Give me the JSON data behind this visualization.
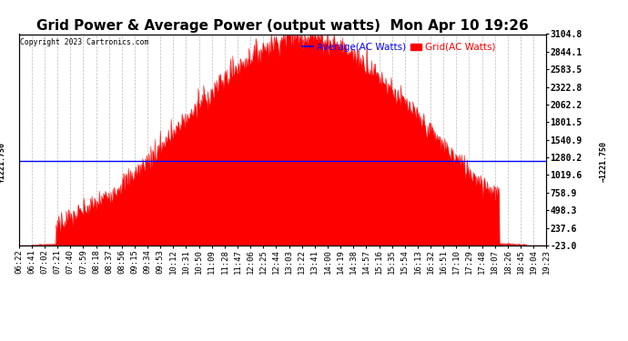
{
  "title": "Grid Power & Average Power (output watts)  Mon Apr 10 19:26",
  "copyright": "Copyright 2023 Cartronics.com",
  "legend_avg": "Average(AC Watts)",
  "legend_grid": "Grid(AC Watts)",
  "avg_value": 1221.75,
  "ymin": -23.0,
  "ymax": 3104.8,
  "yticks": [
    3104.8,
    2844.1,
    2583.5,
    2322.8,
    2062.2,
    1801.5,
    1540.9,
    1280.2,
    1019.6,
    758.9,
    498.3,
    237.6,
    -23.0
  ],
  "fill_color": "#ff0000",
  "avg_line_color": "#0000ff",
  "background_color": "#ffffff",
  "grid_color": "#bbbbbb",
  "xtick_labels": [
    "06:22",
    "06:41",
    "07:02",
    "07:21",
    "07:40",
    "07:59",
    "08:18",
    "08:37",
    "08:56",
    "09:15",
    "09:34",
    "09:53",
    "10:12",
    "10:31",
    "10:50",
    "11:09",
    "11:28",
    "11:47",
    "12:06",
    "12:25",
    "12:44",
    "13:03",
    "13:22",
    "13:41",
    "14:00",
    "14:19",
    "14:38",
    "14:57",
    "15:16",
    "15:35",
    "15:54",
    "16:13",
    "16:32",
    "16:51",
    "17:10",
    "17:29",
    "17:48",
    "18:07",
    "18:26",
    "18:45",
    "19:04",
    "19:23"
  ],
  "title_fontsize": 11,
  "tick_fontsize": 6.5,
  "legend_fontsize": 7.5
}
